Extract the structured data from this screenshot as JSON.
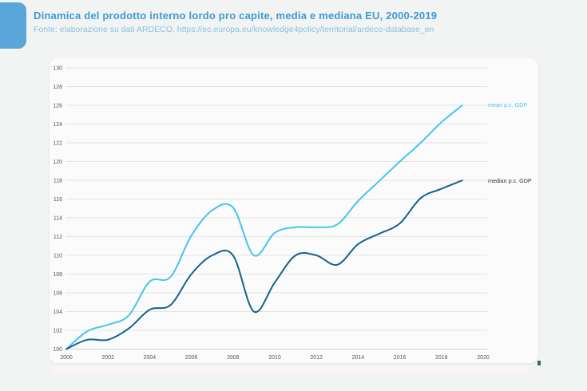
{
  "header": {
    "title": "Dinamica del prodotto interno lordo pro capite, media e mediana EU, 2000-2019",
    "source": "Fonte: elaborazione su dati ARDECO, https://ec.europa.eu/knowledge4policy/territorial/ardeco-database_en"
  },
  "colors": {
    "accent_tab": "#5ba6d9",
    "title_text": "#3e9ad3",
    "source_text": "#8ac2e2",
    "gridline": "#e3e3e4",
    "baseline": "#cfd0d1",
    "tick_text": "#555555",
    "mean_line": "#45c4ee",
    "median_line": "#15618f",
    "mean_label": "#45c4ee",
    "median_label": "#263440",
    "card_bg": "#fbfbfc",
    "page_bg": "#f2f3f3",
    "footer_strip": "#fcf4f2",
    "green_tick": "#3d6b45"
  },
  "chart_data": {
    "type": "line",
    "title": "Dinamica del prodotto interno lordo pro capite, media e mediana EU, 2000-2019",
    "xlabel": "",
    "ylabel": "",
    "x": [
      2000,
      2001,
      2002,
      2003,
      2004,
      2005,
      2006,
      2007,
      2008,
      2009,
      2010,
      2011,
      2012,
      2013,
      2014,
      2015,
      2016,
      2017,
      2018,
      2019
    ],
    "series": [
      {
        "name": "mean p.c. GDP",
        "color": "#45c4ee",
        "values": [
          100,
          101.9,
          102.6,
          103.6,
          107.2,
          107.7,
          112.1,
          114.8,
          115.1,
          110,
          112.4,
          113,
          113,
          113.3,
          115.8,
          117.9,
          120,
          122,
          124.2,
          126
        ]
      },
      {
        "name": "median p.c. GDP",
        "color": "#15618f",
        "values": [
          100,
          101,
          101,
          102.2,
          104.2,
          104.7,
          108,
          110,
          110,
          104,
          107.1,
          110,
          110,
          109,
          111.2,
          112.3,
          113.4,
          116.1,
          117.1,
          118
        ]
      }
    ],
    "xlim": [
      2000,
      2020
    ],
    "ylim": [
      100,
      130
    ],
    "xticks": [
      2000,
      2002,
      2004,
      2006,
      2008,
      2010,
      2012,
      2014,
      2016,
      2018,
      2020
    ],
    "yticks": [
      100,
      102,
      104,
      106,
      108,
      110,
      112,
      114,
      116,
      118,
      120,
      122,
      124,
      126,
      128,
      130
    ],
    "grid": "horizontal",
    "legend": "line-end-labels"
  }
}
